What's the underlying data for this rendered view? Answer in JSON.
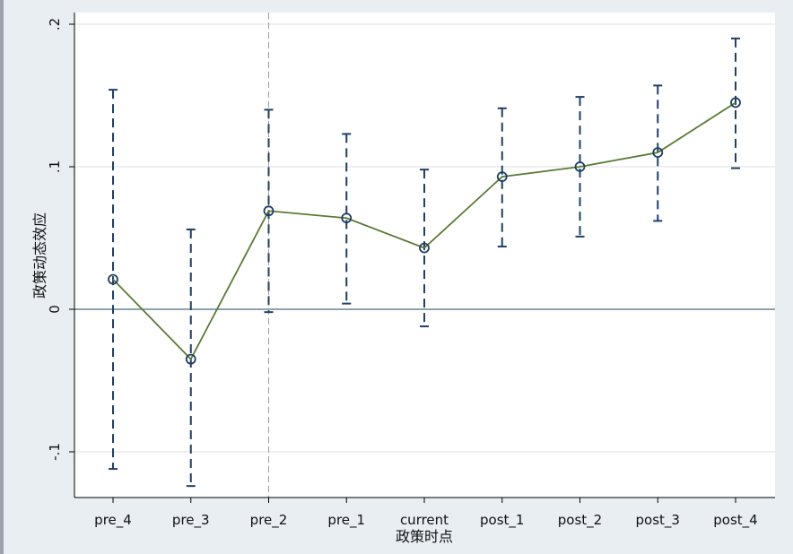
{
  "chart_data": {
    "type": "line",
    "categories": [
      "pre_4",
      "pre_3",
      "pre_2",
      "pre_1",
      "current",
      "post_1",
      "post_2",
      "post_3",
      "post_4"
    ],
    "series": [
      {
        "values": [
          0.021,
          -0.035,
          0.069,
          0.064,
          0.043,
          0.093,
          0.1,
          0.11,
          0.145
        ],
        "ci_low": [
          -0.112,
          -0.124,
          -0.002,
          0.004,
          -0.012,
          0.044,
          0.051,
          0.062,
          0.099
        ],
        "ci_high": [
          0.154,
          0.056,
          0.14,
          0.123,
          0.098,
          0.141,
          0.149,
          0.157,
          0.19
        ],
        "line_color": "#5a7a33",
        "ci_color": "#1f3f66"
      }
    ],
    "title": "",
    "xlabel": "政策时点",
    "ylabel": "政策动态效应",
    "ylim": [
      -0.13,
      0.2
    ],
    "yticks": [
      -0.1,
      0,
      0.1,
      0.2
    ],
    "ytick_labels": [
      "-.1",
      "0",
      ".1",
      ".2"
    ],
    "reference_line_y": 0,
    "reference_line_x_category": "pre_2",
    "grid": true,
    "plot_background": "#ffffff",
    "outer_background": "#e8eef2"
  }
}
